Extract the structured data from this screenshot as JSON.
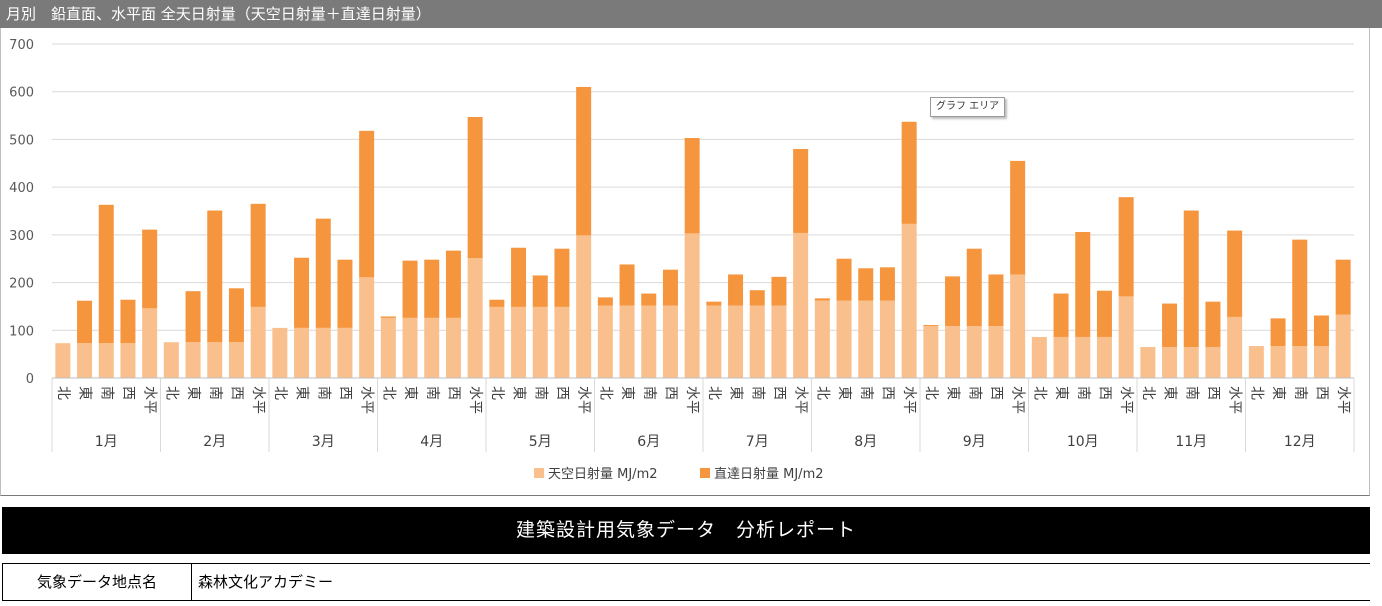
{
  "header": {
    "title": "月別　鉛直面、水平面 全天日射量（天空日射量＋直達日射量）"
  },
  "tooltip": {
    "label": "グラフ エリア"
  },
  "chart_data": {
    "type": "bar",
    "stacked": true,
    "y_axis": {
      "ticks": [
        0,
        100,
        200,
        300,
        400,
        500,
        600,
        700
      ],
      "ylim": [
        0,
        700
      ],
      "grid": true
    },
    "orientations": [
      "北",
      "東",
      "南",
      "西",
      "水平"
    ],
    "months": [
      "1月",
      "2月",
      "3月",
      "4月",
      "5月",
      "6月",
      "7月",
      "8月",
      "9月",
      "10月",
      "11月",
      "12月"
    ],
    "series": [
      {
        "name": "天空日射量 MJ/m2",
        "color": "#f9c08d",
        "values": [
          [
            73,
            73,
            73,
            73,
            146
          ],
          [
            75,
            75,
            75,
            75,
            149
          ],
          [
            105,
            105,
            105,
            105,
            211
          ],
          [
            126,
            126,
            126,
            126,
            251
          ],
          [
            149,
            149,
            149,
            149,
            299
          ],
          [
            152,
            152,
            152,
            152,
            303
          ],
          [
            152,
            152,
            152,
            152,
            304
          ],
          [
            162,
            162,
            162,
            162,
            323
          ],
          [
            109,
            109,
            109,
            109,
            217
          ],
          [
            86,
            86,
            86,
            86,
            171
          ],
          [
            65,
            65,
            65,
            65,
            128
          ],
          [
            67,
            67,
            67,
            67,
            133
          ]
        ]
      },
      {
        "name": "直達日射量 MJ/m2",
        "color": "#f5963f",
        "values": [
          [
            0,
            89,
            290,
            91,
            165
          ],
          [
            0,
            107,
            276,
            113,
            216
          ],
          [
            0,
            147,
            229,
            143,
            307
          ],
          [
            3,
            120,
            122,
            141,
            296
          ],
          [
            15,
            124,
            66,
            122,
            311
          ],
          [
            17,
            86,
            25,
            75,
            200
          ],
          [
            8,
            65,
            32,
            60,
            176
          ],
          [
            5,
            88,
            68,
            70,
            214
          ],
          [
            2,
            104,
            162,
            108,
            238
          ],
          [
            0,
            91,
            220,
            97,
            208
          ],
          [
            0,
            91,
            286,
            95,
            181
          ],
          [
            0,
            58,
            223,
            64,
            115
          ]
        ]
      }
    ],
    "legend": "bottom-center"
  },
  "report": {
    "banner_title": "建築設計用気象データ　分析レポート",
    "station_label": "気象データ地点名",
    "station_value": "森林文化アカデミー"
  }
}
